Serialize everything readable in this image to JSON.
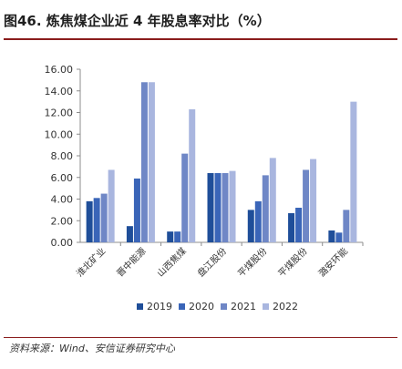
{
  "title": "图46. 炼焦煤企业近 4 年股息率对比（%）",
  "source": "资料来源：Wind、安信证券研究中心",
  "chart_data": {
    "type": "bar",
    "categories": [
      "淮北矿业",
      "晋中能源",
      "山西焦煤",
      "盘江股份",
      "平煤股份",
      "平煤股份",
      "潞安环能"
    ],
    "series": [
      {
        "name": "2019",
        "color": "#1f4e99",
        "values": [
          3.8,
          1.5,
          1.0,
          6.4,
          3.0,
          2.7,
          1.1
        ]
      },
      {
        "name": "2020",
        "color": "#3a65b8",
        "values": [
          4.1,
          5.9,
          1.0,
          6.4,
          3.8,
          3.2,
          0.9
        ]
      },
      {
        "name": "2021",
        "color": "#6f87c6",
        "values": [
          4.5,
          14.8,
          8.2,
          6.4,
          6.2,
          6.7,
          3.0
        ]
      },
      {
        "name": "2022",
        "color": "#a9b6df",
        "values": [
          6.7,
          14.8,
          12.3,
          6.6,
          7.8,
          7.7,
          13.0
        ]
      }
    ],
    "ylim": [
      0,
      16
    ],
    "yticks": [
      "0.00",
      "2.00",
      "4.00",
      "6.00",
      "8.00",
      "10.00",
      "12.00",
      "14.00",
      "16.00"
    ],
    "grid": false,
    "legend_position": "bottom"
  }
}
